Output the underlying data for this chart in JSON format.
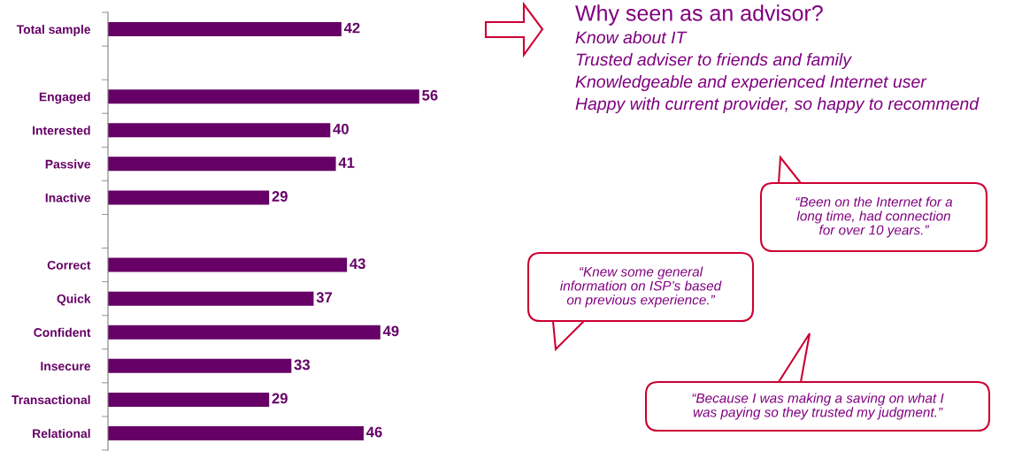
{
  "chart_data": {
    "type": "bar",
    "orientation": "horizontal",
    "categories": [
      "Total sample",
      null,
      "Engaged",
      "Interested",
      "Passive",
      "Inactive",
      null,
      "Correct",
      "Quick",
      "Confident",
      "Insecure",
      "Transactional",
      "Relational"
    ],
    "values": [
      42,
      null,
      56,
      40,
      41,
      29,
      null,
      43,
      37,
      49,
      33,
      29,
      46
    ],
    "color": "#660066",
    "data_labels": true,
    "tick_labels": "y",
    "annotations": [
      "Why seen as an advisor?",
      "Know about IT",
      "Trusted adviser to friends and family",
      "Knowledgeable and experienced Internet user",
      "Happy with current provider, so happy to recommend",
      "“Been on the Internet for a\nlong time, had connection\nfor over 10 years.”",
      "“Knew some general\ninformation on ISP’s based\non previous experience.”",
      "“Because I was making a saving on what I\nwas paying so they trusted my judgment.”"
    ]
  }
}
